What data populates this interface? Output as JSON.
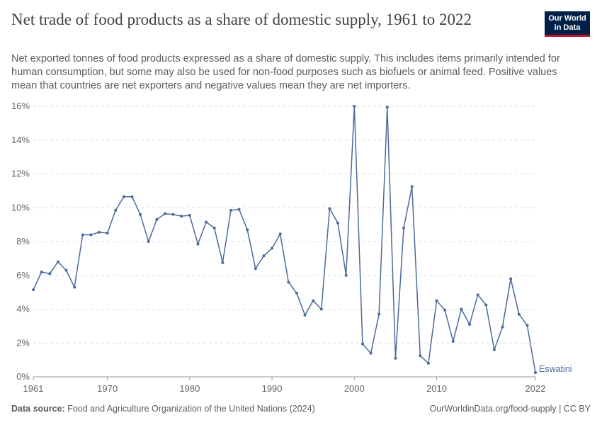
{
  "header": {
    "title": "Net trade of food products as a share of domestic supply, 1961 to 2022",
    "subtitle": "Net exported tonnes of food products expressed as a share of domestic supply. This includes items primarily intended for human consumption, but some may also be used for non-food purposes such as biofuels or animal feed. Positive values mean that countries are net exporters and negative values mean they are net importers.",
    "logo_line1": "Our World",
    "logo_line2": "in Data",
    "logo_colors": {
      "background": "#002147",
      "accent": "#c8102e"
    }
  },
  "footer": {
    "source_label": "Data source:",
    "source_text": "Food and Agriculture Organization of the United Nations (2024)",
    "credit": "OurWorldinData.org/food-supply | CC BY"
  },
  "chart_data": {
    "type": "line",
    "title": "Net trade of food products as a share of domestic supply, 1961 to 2022",
    "x_ticks": [
      1961,
      1970,
      1980,
      1990,
      2000,
      2010,
      2022
    ],
    "y_ticks": [
      0,
      2,
      4,
      6,
      8,
      10,
      12,
      14,
      16
    ],
    "y_tick_labels": [
      "0%",
      "2%",
      "4%",
      "6%",
      "8%",
      "10%",
      "12%",
      "14%",
      "16%"
    ],
    "xlim": [
      1961,
      2022
    ],
    "ylim": [
      0,
      16
    ],
    "grid": "horizontal dashed",
    "series": [
      {
        "name": "Eswatini",
        "color": "#4c6a9c",
        "x": [
          1961,
          1962,
          1963,
          1964,
          1965,
          1966,
          1967,
          1968,
          1969,
          1970,
          1971,
          1972,
          1973,
          1974,
          1975,
          1976,
          1977,
          1978,
          1979,
          1980,
          1981,
          1982,
          1983,
          1984,
          1985,
          1986,
          1987,
          1988,
          1989,
          1990,
          1991,
          1992,
          1993,
          1994,
          1995,
          1996,
          1997,
          1998,
          1999,
          2000,
          2001,
          2002,
          2003,
          2004,
          2005,
          2006,
          2007,
          2008,
          2009,
          2010,
          2011,
          2012,
          2013,
          2014,
          2015,
          2016,
          2017,
          2018,
          2019,
          2020,
          2021,
          2022
        ],
        "y": [
          5.15,
          6.2,
          6.1,
          6.8,
          6.3,
          5.3,
          8.4,
          8.4,
          8.55,
          8.5,
          9.85,
          10.65,
          10.65,
          9.6,
          8.0,
          9.3,
          9.65,
          9.6,
          9.5,
          9.55,
          7.85,
          9.15,
          8.8,
          6.75,
          9.85,
          9.9,
          8.7,
          6.4,
          7.15,
          7.6,
          8.45,
          5.6,
          4.95,
          3.65,
          4.5,
          4.0,
          9.95,
          9.1,
          6.0,
          16.0,
          1.95,
          1.4,
          3.7,
          15.95,
          1.1,
          8.8,
          11.25,
          1.25,
          0.8,
          4.5,
          3.95,
          2.1,
          4.0,
          3.1,
          4.85,
          4.25,
          1.6,
          2.95,
          5.8,
          3.7,
          3.05,
          0.25
        ]
      }
    ]
  }
}
